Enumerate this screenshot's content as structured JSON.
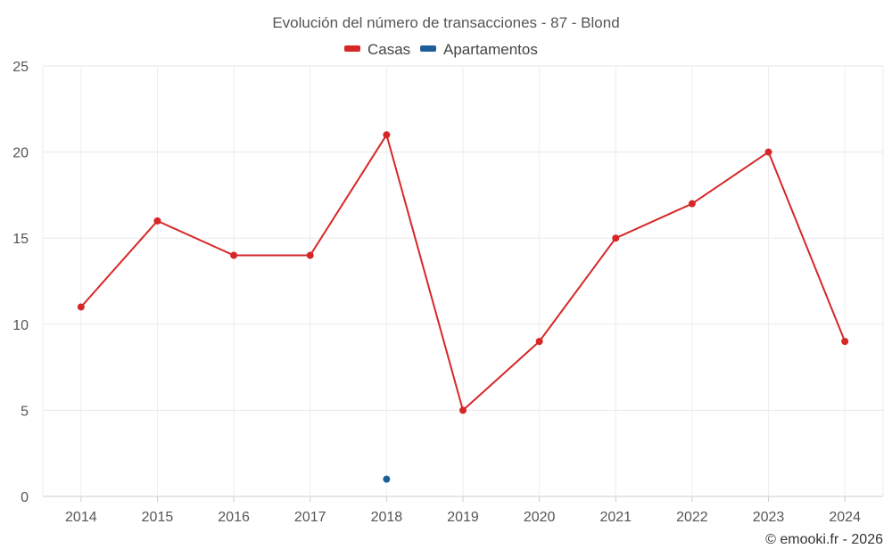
{
  "chart_data": {
    "type": "line",
    "title": "Evolución del número de transacciones - 87 - Blond",
    "categories": [
      "2014",
      "2015",
      "2016",
      "2017",
      "2018",
      "2019",
      "2020",
      "2021",
      "2022",
      "2023",
      "2024"
    ],
    "series": [
      {
        "name": "Casas",
        "color": "#d62728",
        "values": [
          11,
          16,
          14,
          14,
          21,
          5,
          9,
          15,
          17,
          20,
          9
        ]
      },
      {
        "name": "Apartamentos",
        "color": "#1f5f99",
        "values": [
          null,
          null,
          null,
          null,
          1,
          null,
          null,
          null,
          null,
          null,
          null
        ]
      }
    ],
    "ylim": [
      0,
      25
    ],
    "yticks": [
      0,
      5,
      10,
      15,
      20,
      25
    ],
    "grid": true,
    "legend_position": "top-center",
    "credit": "© emooki.fr - 2026"
  }
}
